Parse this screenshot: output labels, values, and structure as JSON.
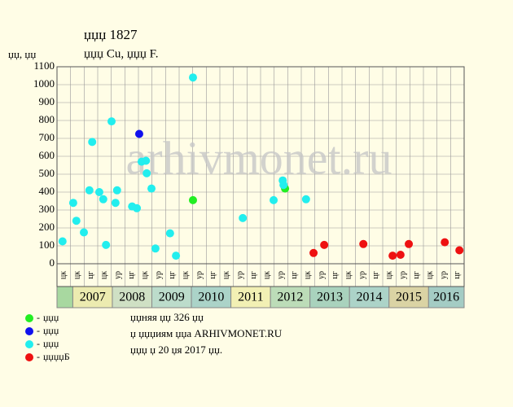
{
  "chart_data": {
    "type": "scatter",
    "title": "џџџ 1827",
    "subtitle": "џџџ Cu, џџџ F.",
    "y_label": "џџ, џџ",
    "watermark": "arhivmonet.ru",
    "ylim": [
      0,
      1100
    ],
    "yticks": [
      0,
      100,
      200,
      300,
      400,
      500,
      600,
      700,
      800,
      900,
      1000,
      1100
    ],
    "xlim": [
      2006.6,
      2016.9
    ],
    "grid": true,
    "period_labels": [
      "цк",
      "цк",
      "цг",
      "цк",
      "ур",
      "цг",
      "цк",
      "ур",
      "цг",
      "цк",
      "ур",
      "цг",
      "цк",
      "ур",
      "цг",
      "цк",
      "ур",
      "цг",
      "цк",
      "ур",
      "цг",
      "цк",
      "ур",
      "цг",
      "цк",
      "ур",
      "цг",
      "цк",
      "ур",
      "цг"
    ],
    "years": [
      2007,
      2008,
      2009,
      2010,
      2011,
      2012,
      2013,
      2014,
      2015,
      2016
    ],
    "year_colors": [
      "#ecebb0",
      "#cfe0c4",
      "#bcdccb",
      "#abd3c8",
      "#f2f0b4",
      "#bcdcb8",
      "#a9d2bd",
      "#acd3c8",
      "#dad3a4",
      "#a4ccc4"
    ],
    "first_cell_color": "#a8d8a0",
    "series": [
      {
        "name": "џџџ",
        "color": "#22ee22",
        "x": [
          2010.04,
          2012.37
        ],
        "values": [
          355,
          420
        ]
      },
      {
        "name": "џџџ",
        "color": "#1010ee",
        "x": [
          2008.68
        ],
        "values": [
          725
        ]
      },
      {
        "name": "џџџ",
        "color": "#22eeee",
        "x": [
          2006.74,
          2007.01,
          2007.09,
          2007.28,
          2007.42,
          2007.49,
          2007.67,
          2007.77,
          2007.84,
          2007.98,
          2008.08,
          2008.12,
          2008.5,
          2008.62,
          2008.74,
          2008.85,
          2008.87,
          2008.99,
          2009.09,
          2009.46,
          2009.61,
          2010.04,
          2011.3,
          2012.08,
          2012.31,
          2012.33,
          2012.9
        ],
        "values": [
          125,
          340,
          240,
          175,
          410,
          680,
          400,
          360,
          105,
          795,
          340,
          410,
          320,
          310,
          570,
          575,
          505,
          420,
          85,
          170,
          45,
          1040,
          255,
          355,
          465,
          440,
          360
        ]
      },
      {
        "name": "џџџџБ",
        "color": "#ee1111",
        "x": [
          2013.09,
          2013.36,
          2014.35,
          2015.09,
          2015.29,
          2015.5,
          2016.41,
          2016.78
        ],
        "values": [
          60,
          105,
          110,
          45,
          50,
          110,
          120,
          75
        ]
      }
    ],
    "notes": [
      "џџняя џџ 326 џџ",
      "џ џџџиям џџа ARHIVMONET.RU",
      "џџџ џ 20 џя 2017 џџ."
    ]
  }
}
